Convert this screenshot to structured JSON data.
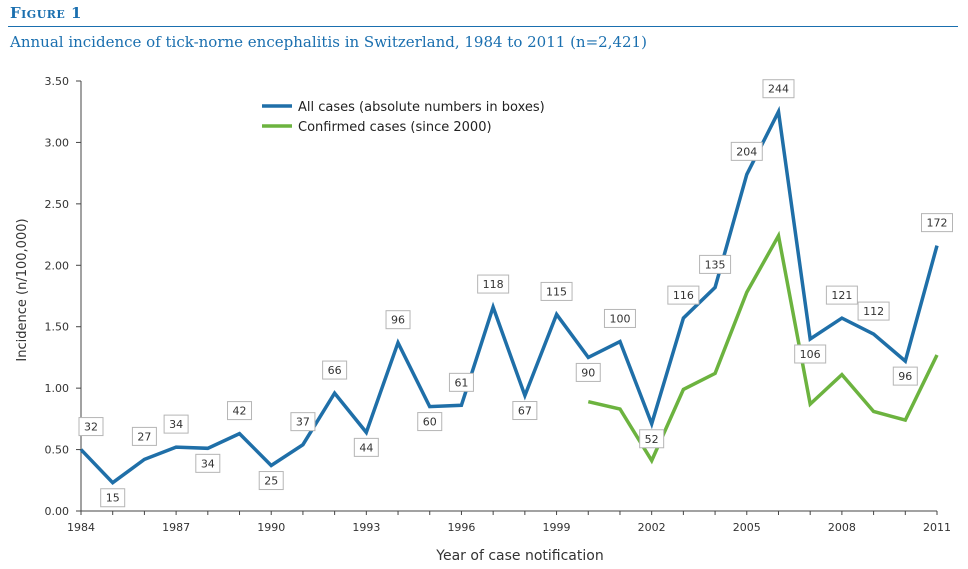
{
  "figure": {
    "label": "Figure 1",
    "title": "Annual incidence of tick-norne encephalitis in Switzerland, 1984 to 2011 (n=2,421)"
  },
  "colors": {
    "accent": "#1a6faf",
    "all_cases": "#1f6fa8",
    "confirmed": "#6cb33f",
    "box_border": "#b5b5b5",
    "axis": "#444444"
  },
  "chart_data": {
    "type": "line",
    "xlabel": "Year of case notification",
    "ylabel": "Incidence (n/100,000)",
    "ylim": [
      0,
      3.5
    ],
    "xlim": [
      1984,
      2011
    ],
    "grid": false,
    "legend_position": "top-center",
    "yticks": [
      "0.00",
      "0.50",
      "1.00",
      "1.50",
      "2.00",
      "2.50",
      "3.00",
      "3.50"
    ],
    "xticks": [
      "1984",
      "1987",
      "1990",
      "1993",
      "1996",
      "1999",
      "2002",
      "2005",
      "2008",
      "2011"
    ],
    "series": [
      {
        "name": "All cases (absolute numbers in boxes)",
        "x": [
          1984,
          1985,
          1986,
          1987,
          1988,
          1989,
          1990,
          1991,
          1992,
          1993,
          1994,
          1995,
          1996,
          1997,
          1998,
          1999,
          2000,
          2001,
          2002,
          2003,
          2004,
          2005,
          2006,
          2007,
          2008,
          2009,
          2010,
          2011
        ],
        "y": [
          0.5,
          0.23,
          0.42,
          0.52,
          0.51,
          0.63,
          0.37,
          0.54,
          0.96,
          0.64,
          1.37,
          0.85,
          0.86,
          1.66,
          0.94,
          1.6,
          1.25,
          1.38,
          0.71,
          1.57,
          1.82,
          2.74,
          3.25,
          1.4,
          1.57,
          1.44,
          1.22,
          2.16
        ],
        "labels": [
          "32",
          "15",
          "27",
          "34",
          "34",
          "42",
          "25",
          "37",
          "66",
          "44",
          "96",
          "60",
          "61",
          "118",
          "67",
          "115",
          "90",
          "100",
          "52",
          "116",
          "135",
          "204",
          "244",
          "106",
          "121",
          "112",
          "96",
          "172"
        ]
      },
      {
        "name": "Confirmed cases (since 2000)",
        "x": [
          2000,
          2001,
          2002,
          2003,
          2004,
          2005,
          2006,
          2007,
          2008,
          2009,
          2010,
          2011
        ],
        "y": [
          0.89,
          0.83,
          0.41,
          0.99,
          1.12,
          1.78,
          2.24,
          0.87,
          1.11,
          0.81,
          0.74,
          1.27
        ]
      }
    ]
  }
}
